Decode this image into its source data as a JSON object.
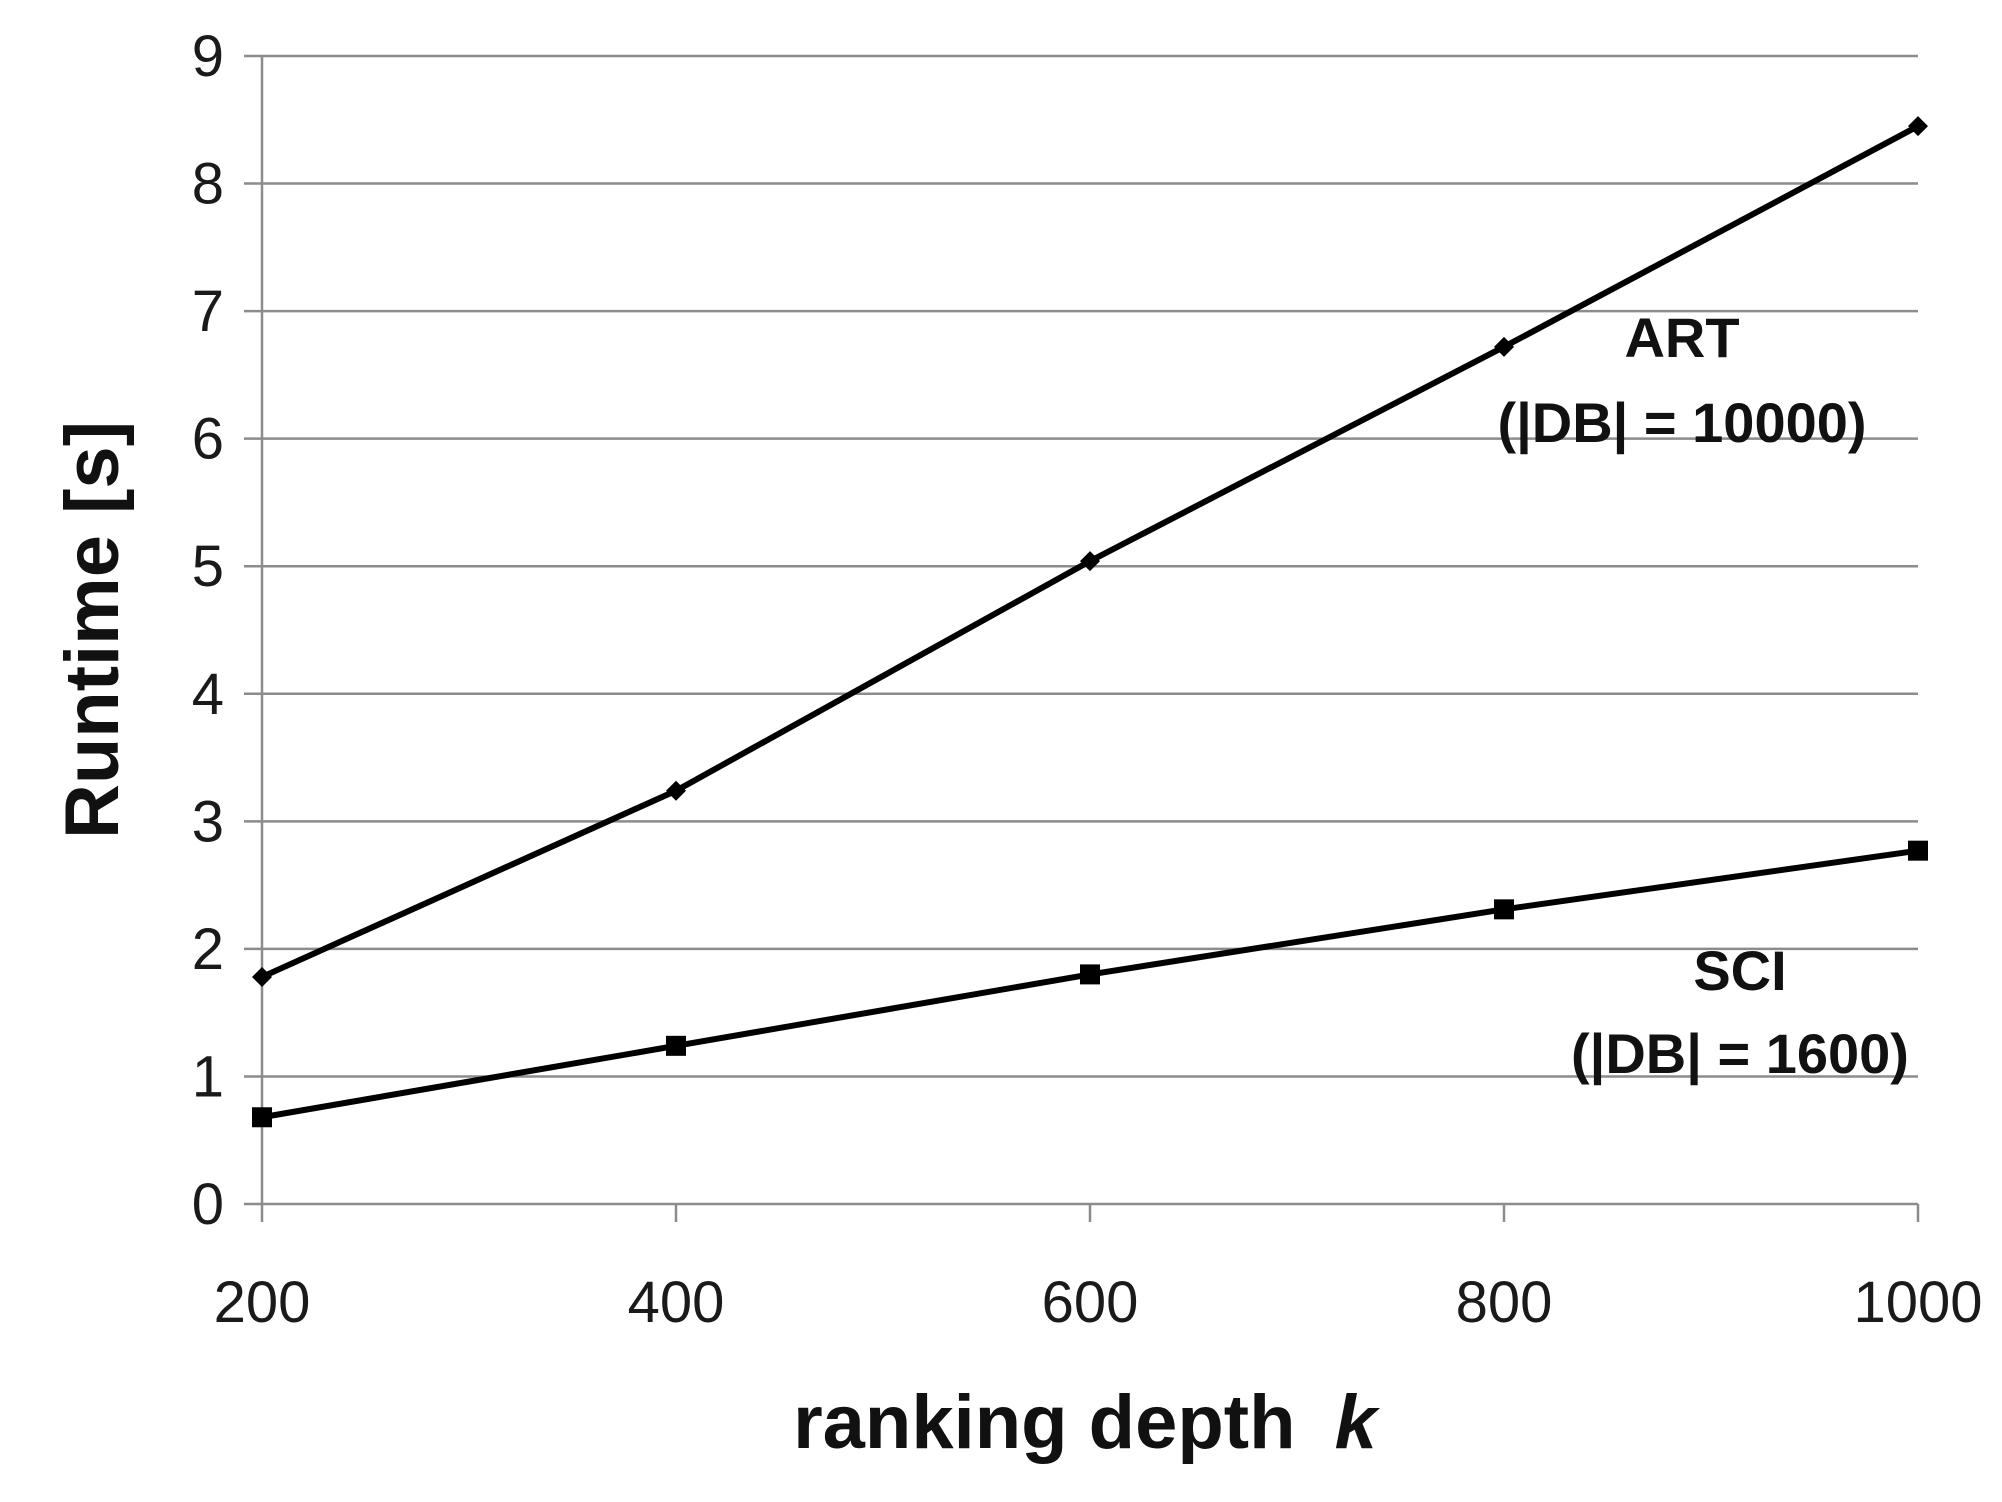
{
  "chart_data": {
    "type": "line",
    "title": "",
    "xlabel": "ranking depth",
    "xlabel_var": "k",
    "ylabel": "Runtime [s]",
    "x": [
      200,
      400,
      600,
      800,
      1000
    ],
    "xticks": [
      "200",
      "400",
      "600",
      "800",
      "1000"
    ],
    "xlim": [
      200,
      1000
    ],
    "ylim": [
      0,
      9
    ],
    "yticks": [
      "0",
      "1",
      "2",
      "3",
      "4",
      "5",
      "6",
      "7",
      "8",
      "9"
    ],
    "grid": "horizontal",
    "series": [
      {
        "name": "ART",
        "label_lines": [
          "ART",
          "(|DB| = 10000)"
        ],
        "marker": "diamond",
        "color": "#000000",
        "values": [
          1.78,
          3.24,
          5.04,
          6.72,
          8.45
        ]
      },
      {
        "name": "SCI",
        "label_lines": [
          "SCI",
          "(|DB| = 1600)"
        ],
        "marker": "square",
        "color": "#000000",
        "values": [
          0.68,
          1.24,
          1.8,
          2.31,
          2.77
        ]
      }
    ]
  }
}
